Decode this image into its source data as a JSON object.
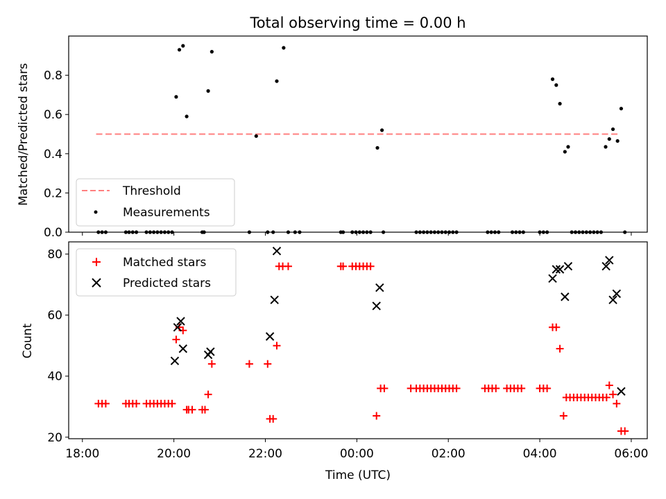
{
  "chart_data": [
    {
      "type": "scatter",
      "title": "Total observing time = 0.00 h",
      "ylabel": "Matched/Predicted stars",
      "ylim": [
        0,
        1.0
      ],
      "yticks": [
        "0.0",
        "0.2",
        "0.4",
        "0.6",
        "0.8"
      ],
      "xlim": [
        -6.3,
        6.35
      ],
      "threshold": {
        "name": "Threshold",
        "value": 0.5,
        "x": [
          -5.7,
          5.75
        ],
        "color": "#ff7f7f",
        "style": "dashed"
      },
      "legend": {
        "placement": "lower-left",
        "entries": [
          "Threshold",
          "Measurements"
        ]
      },
      "series": [
        {
          "name": "Measurements",
          "color": "#000000",
          "marker": "dot",
          "x": [
            -5.65,
            -5.57,
            -5.49,
            -5.05,
            -4.98,
            -4.9,
            -4.82,
            -4.6,
            -4.52,
            -4.44,
            -4.36,
            -4.28,
            -4.2,
            -4.12,
            -4.04,
            -3.95,
            -3.88,
            -3.8,
            -3.72,
            -3.38,
            -3.34,
            -3.25,
            -3.17,
            -2.35,
            -2.2,
            -1.95,
            -1.83,
            -1.75,
            -1.6,
            -1.5,
            -1.35,
            -1.25,
            -0.35,
            -0.3,
            -0.1,
            -0.02,
            0.06,
            0.14,
            0.22,
            0.3,
            0.45,
            0.55,
            0.58,
            1.3,
            1.38,
            1.46,
            1.54,
            1.62,
            1.7,
            1.78,
            1.86,
            1.94,
            2.02,
            2.1,
            2.18,
            2.86,
            2.94,
            3.02,
            3.1,
            3.4,
            3.48,
            3.56,
            3.64,
            4.0,
            4.08,
            4.16,
            4.28,
            4.36,
            4.44,
            4.55,
            4.62,
            4.7,
            4.78,
            4.86,
            4.94,
            5.02,
            5.1,
            5.18,
            5.26,
            5.34,
            5.44,
            5.52,
            5.6,
            5.7,
            5.78,
            5.86
          ],
          "y": [
            0.0,
            0.0,
            0.0,
            0.0,
            0.0,
            0.0,
            0.0,
            0.0,
            0.0,
            0.0,
            0.0,
            0.0,
            0.0,
            0.0,
            0.0,
            0.69,
            0.93,
            0.95,
            0.59,
            0.0,
            0.0,
            0.72,
            0.92,
            0.0,
            0.49,
            0.0,
            0.0,
            0.77,
            0.94,
            0.0,
            0.0,
            0.0,
            0.0,
            0.0,
            0.0,
            0.0,
            0.0,
            0.0,
            0.0,
            0.0,
            0.43,
            0.52,
            0.0,
            0.0,
            0.0,
            0.0,
            0.0,
            0.0,
            0.0,
            0.0,
            0.0,
            0.0,
            0.0,
            0.0,
            0.0,
            0.0,
            0.0,
            0.0,
            0.0,
            0.0,
            0.0,
            0.0,
            0.0,
            0.0,
            0.0,
            0.0,
            0.78,
            0.75,
            0.655,
            0.41,
            0.435,
            0.0,
            0.0,
            0.0,
            0.0,
            0.0,
            0.0,
            0.0,
            0.0,
            0.0,
            0.435,
            0.475,
            0.525,
            0.465,
            0.63,
            0.0
          ]
        }
      ]
    },
    {
      "type": "scatter",
      "xlabel": "Time (UTC)",
      "ylabel": "Count",
      "ylim": [
        19.5,
        84
      ],
      "yticks": [
        "20",
        "40",
        "60",
        "80"
      ],
      "xlim": [
        -6.3,
        6.35
      ],
      "xticks": [
        {
          "value": -6,
          "label": "18:00"
        },
        {
          "value": -4,
          "label": "20:00"
        },
        {
          "value": -2,
          "label": "22:00"
        },
        {
          "value": 0,
          "label": "00:00"
        },
        {
          "value": 2,
          "label": "02:00"
        },
        {
          "value": 4,
          "label": "04:00"
        },
        {
          "value": 6,
          "label": "06:00"
        }
      ],
      "legend": {
        "placement": "upper-left",
        "entries": [
          "Matched stars",
          "Predicted stars"
        ]
      },
      "series": [
        {
          "name": "Matched stars",
          "color": "#ff0000",
          "marker": "plus",
          "x": [
            -5.65,
            -5.57,
            -5.49,
            -5.05,
            -4.98,
            -4.9,
            -4.82,
            -4.6,
            -4.52,
            -4.44,
            -4.36,
            -4.28,
            -4.2,
            -4.12,
            -4.04,
            -3.95,
            -3.88,
            -3.8,
            -3.72,
            -3.68,
            -3.6,
            -3.38,
            -3.32,
            -3.25,
            -3.17,
            -2.35,
            -1.95,
            -1.9,
            -1.83,
            -1.75,
            -1.7,
            -1.62,
            -1.5,
            -0.35,
            -0.3,
            -0.1,
            -0.02,
            0.06,
            0.14,
            0.22,
            0.3,
            0.43,
            0.52,
            0.6,
            1.18,
            1.3,
            1.38,
            1.46,
            1.54,
            1.62,
            1.7,
            1.78,
            1.86,
            1.94,
            2.02,
            2.1,
            2.18,
            2.8,
            2.88,
            2.96,
            3.04,
            3.28,
            3.36,
            3.44,
            3.52,
            3.6,
            4.0,
            4.08,
            4.16,
            4.28,
            4.36,
            4.44,
            4.52,
            4.58,
            4.66,
            4.74,
            4.82,
            4.9,
            4.98,
            5.06,
            5.14,
            5.22,
            5.3,
            5.38,
            5.46,
            5.52,
            5.6,
            5.68,
            5.78,
            5.86
          ],
          "y": [
            31,
            31,
            31,
            31,
            31,
            31,
            31,
            31,
            31,
            31,
            31,
            31,
            31,
            31,
            31,
            52,
            56,
            55,
            29,
            29,
            29,
            29,
            29,
            34,
            44,
            44,
            44,
            26,
            26,
            50,
            76,
            76,
            76,
            76,
            76,
            76,
            76,
            76,
            76,
            76,
            76,
            27,
            36,
            36,
            36,
            36,
            36,
            36,
            36,
            36,
            36,
            36,
            36,
            36,
            36,
            36,
            36,
            36,
            36,
            36,
            36,
            36,
            36,
            36,
            36,
            36,
            36,
            36,
            36,
            56,
            56,
            49,
            27,
            33,
            33,
            33,
            33,
            33,
            33,
            33,
            33,
            33,
            33,
            33,
            33,
            37,
            34,
            31,
            22,
            22
          ]
        },
        {
          "name": "Predicted stars",
          "color": "#000000",
          "marker": "x",
          "x": [
            -3.98,
            -3.92,
            -3.85,
            -3.8,
            -3.25,
            -3.2,
            -1.9,
            -1.8,
            -1.75,
            0.43,
            0.5,
            4.28,
            4.36,
            4.44,
            4.55,
            4.62,
            5.45,
            5.52,
            5.6,
            5.68,
            5.78
          ],
          "y": [
            45,
            56,
            58,
            49,
            47,
            48,
            53,
            65,
            81,
            63,
            69,
            72,
            75,
            75,
            66,
            76,
            76,
            78,
            65,
            67,
            35
          ]
        }
      ]
    }
  ]
}
